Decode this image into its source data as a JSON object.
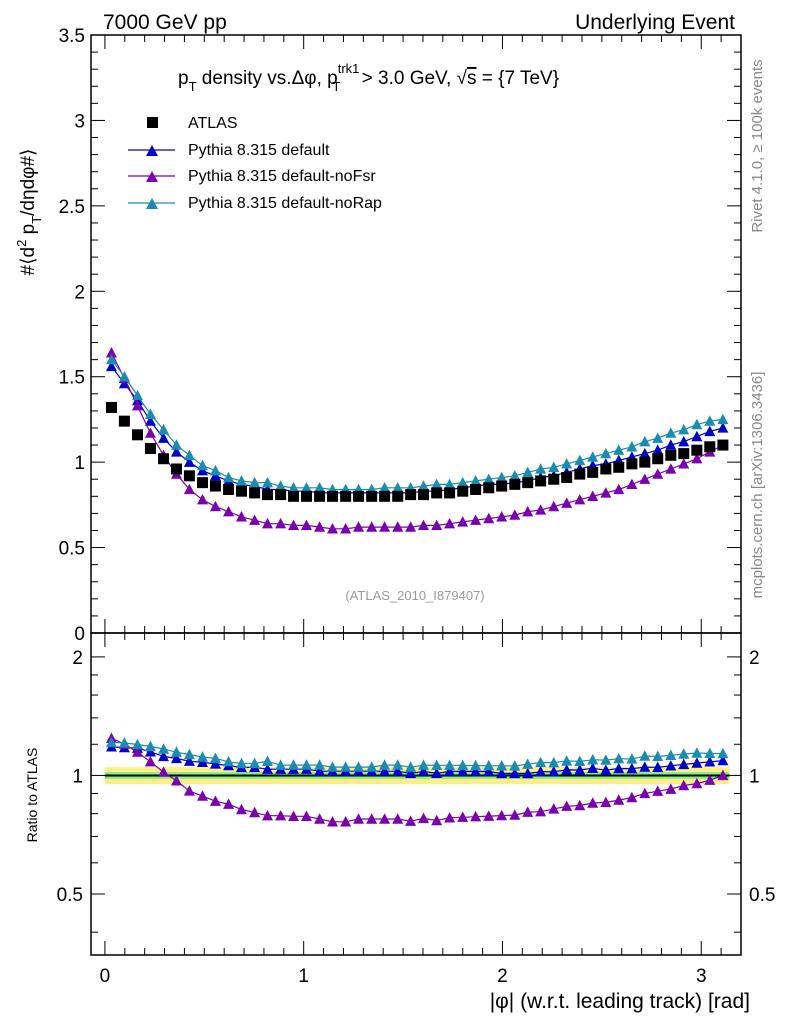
{
  "header": {
    "left": "7000 GeV pp",
    "right": "Underlying Event"
  },
  "side_labels": {
    "rivet": "Rivet 4.1.0, ≥ 100k events",
    "mcplots": "mcplots.cern.ch [arXiv:1306.3436]"
  },
  "chart_data": {
    "type": "scatter",
    "title": {
      "p": "p",
      "p_sub": "T",
      "mid": " density vs.Δφ, p",
      "trk_sup": "trk1",
      "trk_sub": "T",
      "after": " > 3.0 GeV, ",
      "sqrt_sign": "√",
      "s": "s",
      "tail": " = {7 TeV}"
    },
    "ylabel": {
      "prefix": "#⟨d",
      "sq": "2",
      "p": " p",
      "sub": "T",
      "suffix": "/dηdφ#⟩"
    },
    "ratio_ylabel": "Ratio to ATLAS",
    "xlabel": "|φ| (w.r.t. leading track) [rad]",
    "watermark": "(ATLAS_2010_I879407)",
    "xlim": [
      -0.07,
      3.2
    ],
    "ylim": [
      0,
      3.5
    ],
    "ratio_ylim": [
      0.35,
      2.3
    ],
    "x_ticks": [
      "0",
      "1",
      "2",
      "3"
    ],
    "y_ticks": [
      "0",
      "0.5",
      "1",
      "1.5",
      "2",
      "2.5",
      "3",
      "3.5"
    ],
    "ratio_ticks": [
      "0.5",
      "1",
      "2"
    ],
    "x": [
      0.033,
      0.098,
      0.164,
      0.229,
      0.295,
      0.36,
      0.425,
      0.491,
      0.556,
      0.622,
      0.687,
      0.753,
      0.818,
      0.884,
      0.949,
      1.014,
      1.08,
      1.145,
      1.211,
      1.276,
      1.342,
      1.407,
      1.473,
      1.538,
      1.603,
      1.669,
      1.734,
      1.8,
      1.865,
      1.931,
      1.996,
      2.062,
      2.127,
      2.192,
      2.258,
      2.323,
      2.389,
      2.454,
      2.52,
      2.585,
      2.651,
      2.716,
      2.781,
      2.847,
      2.912,
      2.978,
      3.043,
      3.109
    ],
    "atlas_band": {
      "inner": 0.02,
      "outer": 0.05
    },
    "legend": [
      "ATLAS",
      "Pythia 8.315 default",
      "Pythia 8.315 default-noFsr",
      "Pythia 8.315 default-noRap"
    ],
    "series": [
      {
        "name": "ATLAS",
        "color": "#000000",
        "marker": "square",
        "values": [
          1.32,
          1.24,
          1.16,
          1.08,
          1.02,
          0.96,
          0.92,
          0.88,
          0.86,
          0.84,
          0.83,
          0.82,
          0.81,
          0.81,
          0.8,
          0.8,
          0.8,
          0.8,
          0.8,
          0.8,
          0.8,
          0.8,
          0.8,
          0.81,
          0.81,
          0.82,
          0.82,
          0.83,
          0.84,
          0.85,
          0.86,
          0.87,
          0.88,
          0.89,
          0.9,
          0.91,
          0.93,
          0.94,
          0.96,
          0.97,
          0.99,
          1.0,
          1.02,
          1.04,
          1.05,
          1.07,
          1.09,
          1.1
        ]
      },
      {
        "name": "Pythia 8.315 default",
        "color": "#0000cc",
        "marker": "triangle",
        "values": [
          1.56,
          1.46,
          1.36,
          1.24,
          1.14,
          1.06,
          1.0,
          0.95,
          0.92,
          0.89,
          0.87,
          0.86,
          0.84,
          0.84,
          0.83,
          0.83,
          0.82,
          0.82,
          0.82,
          0.82,
          0.82,
          0.82,
          0.82,
          0.82,
          0.83,
          0.83,
          0.84,
          0.85,
          0.86,
          0.87,
          0.87,
          0.88,
          0.89,
          0.91,
          0.92,
          0.94,
          0.96,
          0.98,
          0.99,
          1.01,
          1.03,
          1.05,
          1.07,
          1.1,
          1.12,
          1.15,
          1.18,
          1.2
        ]
      },
      {
        "name": "Pythia 8.315 default-noFsr",
        "color": "#7a00b0",
        "marker": "triangle",
        "values": [
          1.64,
          1.49,
          1.33,
          1.17,
          1.04,
          0.93,
          0.84,
          0.78,
          0.74,
          0.71,
          0.68,
          0.66,
          0.64,
          0.64,
          0.63,
          0.63,
          0.62,
          0.61,
          0.61,
          0.62,
          0.62,
          0.62,
          0.62,
          0.62,
          0.63,
          0.63,
          0.64,
          0.65,
          0.66,
          0.67,
          0.68,
          0.69,
          0.71,
          0.72,
          0.74,
          0.76,
          0.78,
          0.8,
          0.82,
          0.84,
          0.87,
          0.9,
          0.93,
          0.96,
          0.99,
          1.02,
          1.06,
          1.1
        ]
      },
      {
        "name": "Pythia 8.315 default-noRap",
        "color": "#1a8cb0",
        "marker": "triangle",
        "values": [
          1.6,
          1.5,
          1.39,
          1.28,
          1.19,
          1.1,
          1.04,
          0.98,
          0.95,
          0.91,
          0.89,
          0.88,
          0.88,
          0.86,
          0.85,
          0.85,
          0.85,
          0.84,
          0.84,
          0.84,
          0.84,
          0.85,
          0.85,
          0.85,
          0.86,
          0.87,
          0.87,
          0.88,
          0.89,
          0.9,
          0.91,
          0.92,
          0.94,
          0.96,
          0.97,
          0.99,
          1.01,
          1.03,
          1.05,
          1.07,
          1.09,
          1.12,
          1.14,
          1.17,
          1.19,
          1.22,
          1.24,
          1.25
        ]
      }
    ]
  }
}
